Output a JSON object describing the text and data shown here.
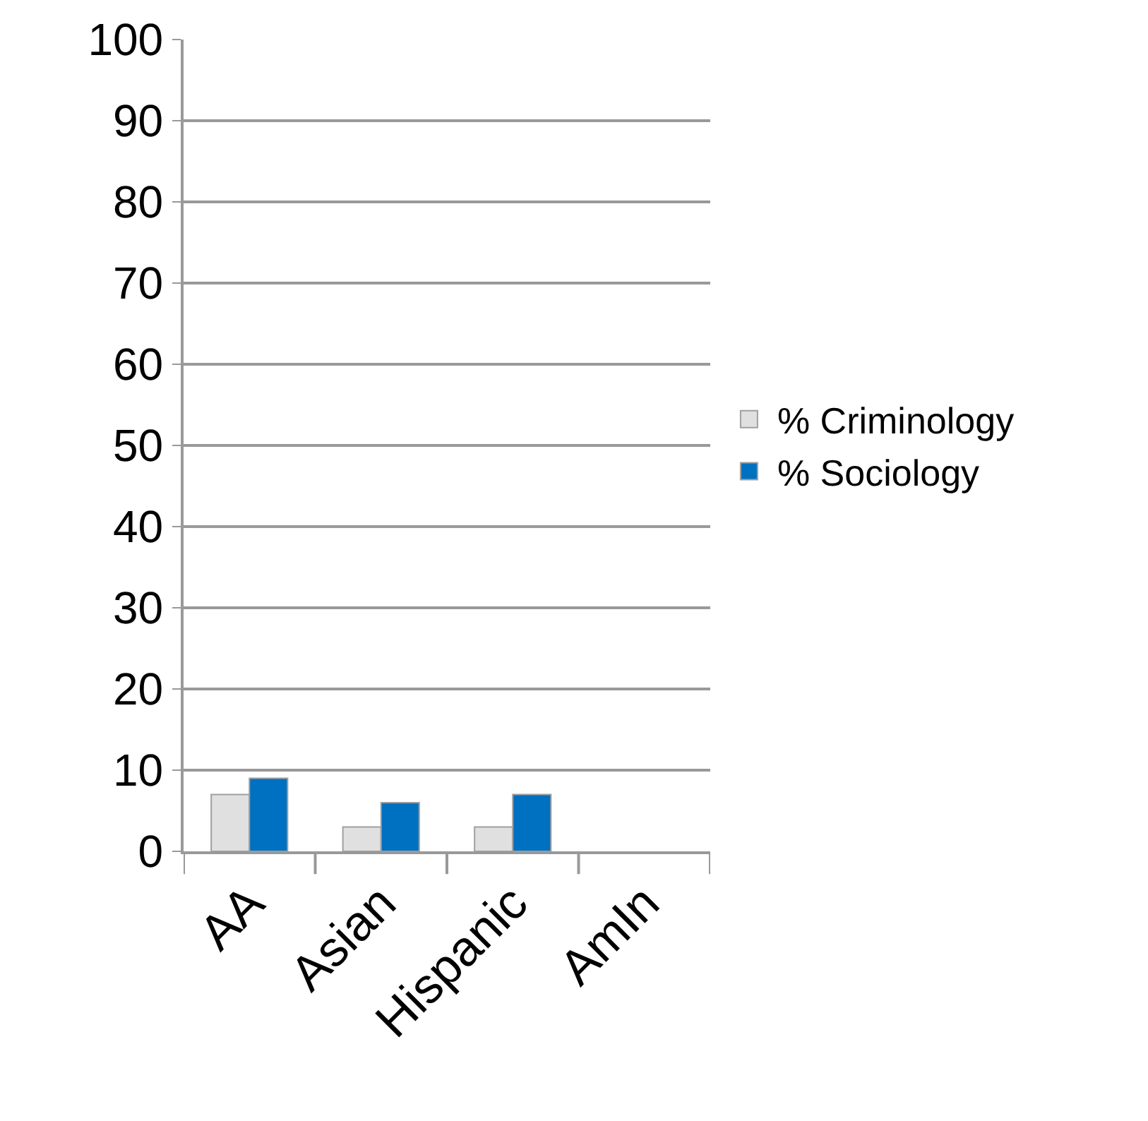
{
  "chart_data": {
    "type": "bar",
    "categories": [
      "AA",
      "Asian",
      "Hispanic",
      "AmIn"
    ],
    "series": [
      {
        "name": "% Criminology",
        "color": "#e0e0e0",
        "values": [
          7,
          3,
          3,
          0
        ]
      },
      {
        "name": "% Sociology",
        "color": "#0070c0",
        "values": [
          9,
          6,
          7,
          0
        ]
      }
    ],
    "ylim": [
      0,
      100
    ],
    "yticks": [
      0,
      10,
      20,
      30,
      40,
      50,
      60,
      70,
      80,
      90,
      100
    ],
    "grid": "y",
    "legend": "right"
  }
}
